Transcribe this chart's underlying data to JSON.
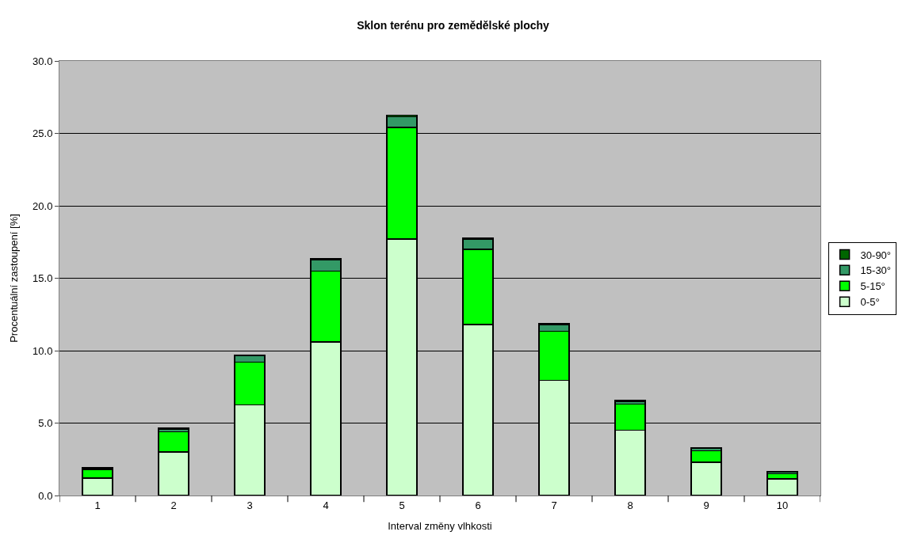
{
  "chart_data": {
    "type": "bar",
    "title": "Sklon terénu pro zemědělské plochy",
    "xlabel": "Interval změny vlhkosti",
    "ylabel": "Procentuální zastoupení [%]",
    "categories": [
      "1",
      "2",
      "3",
      "4",
      "5",
      "6",
      "7",
      "8",
      "9",
      "10"
    ],
    "stacked": true,
    "legend": "right",
    "grid": "y",
    "ylim": [
      0,
      30
    ],
    "yticks": [
      {
        "value": 0,
        "label": "0.0"
      },
      {
        "value": 5,
        "label": "5.0"
      },
      {
        "value": 10,
        "label": "10.0"
      },
      {
        "value": 15,
        "label": "15.0"
      },
      {
        "value": 20,
        "label": "20.0"
      },
      {
        "value": 25,
        "label": "25.0"
      },
      {
        "value": 30,
        "label": "30.0"
      }
    ],
    "series": [
      {
        "name": "0-5°",
        "color": "#ccffcc",
        "values": [
          1.2,
          3.0,
          6.25,
          10.6,
          17.7,
          11.8,
          7.95,
          4.5,
          2.3,
          1.15
        ]
      },
      {
        "name": "5-15°",
        "color": "#00ff00",
        "values": [
          0.6,
          1.4,
          2.95,
          4.9,
          7.7,
          5.2,
          3.4,
          1.8,
          0.8,
          0.35
        ]
      },
      {
        "name": "15-30°",
        "color": "#339966",
        "values": [
          0.05,
          0.15,
          0.45,
          0.75,
          0.75,
          0.7,
          0.45,
          0.2,
          0.15,
          0.1
        ]
      },
      {
        "name": "30-90°",
        "color": "#006600",
        "values": [
          0.1,
          0.1,
          0.05,
          0.1,
          0.1,
          0.1,
          0.05,
          0.05,
          0.05,
          0.05
        ]
      }
    ]
  }
}
